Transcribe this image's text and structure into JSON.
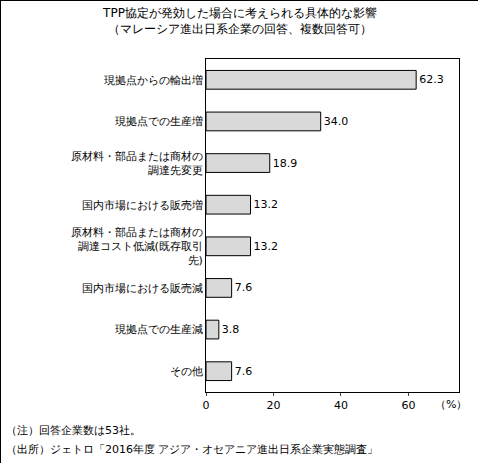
{
  "chart_data": {
    "type": "bar",
    "orientation": "horizontal",
    "title": "TPP協定が発効した場合に考えられる具体的な影響",
    "subtitle": "（マレーシア進出日系企業の回答、複数回答可）",
    "categories": [
      "現拠点からの輸出増",
      "現拠点での生産増",
      "原材料・部品または商材の調達先変更",
      "国内市場における販売増",
      "原材料・部品または商材の調達コスト低減(既存取引先)",
      "国内市場における販売減",
      "現拠点での生産減",
      "その他"
    ],
    "values": [
      62.3,
      34.0,
      18.9,
      13.2,
      13.2,
      7.6,
      3.8,
      7.6
    ],
    "value_labels": [
      "62.3",
      "34.0",
      "18.9",
      "13.2",
      "13.2",
      "7.6",
      "3.8",
      "7.6"
    ],
    "color": "#d9d9d9",
    "x_label": "（%）",
    "xlim": [
      0,
      75
    ],
    "xticks": [
      0,
      20,
      40,
      60
    ],
    "grid": false,
    "data_labels": true,
    "annotations": [
      "（注）回答企業数は53社。",
      "（出所）ジェトロ「2016年度 アジア・オセアニア進出日系企業実態調査」"
    ]
  }
}
